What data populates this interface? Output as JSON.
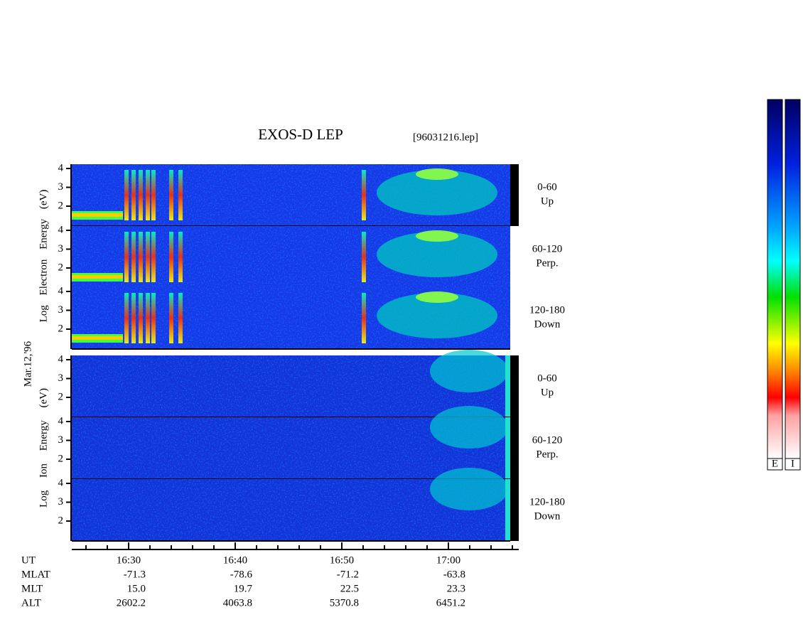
{
  "header": {
    "title": "EXOS-D LEP",
    "file": "[96031216.lep]",
    "date": "Mar.12,'96"
  },
  "groups": [
    {
      "axis_label": "Log Electron Energy (eV)",
      "panels": [
        {
          "angle": "0-60",
          "direction": "Up"
        },
        {
          "angle": "60-120",
          "direction": "Perp."
        },
        {
          "angle": "120-180",
          "direction": "Down"
        }
      ]
    },
    {
      "axis_label": "Log Ion Energy (eV)",
      "panels": [
        {
          "angle": "0-60",
          "direction": "Up"
        },
        {
          "angle": "60-120",
          "direction": "Perp."
        },
        {
          "angle": "120-180",
          "direction": "Down"
        }
      ]
    }
  ],
  "energy_ticks": [
    2,
    3,
    4
  ],
  "ephemeris": {
    "labels": [
      "UT",
      "MLAT",
      "MLT",
      "ALT"
    ],
    "rows": [
      [
        "16:30",
        "-71.3",
        "15.0",
        "2602.2"
      ],
      [
        "16:40",
        "-78.6",
        "19.7",
        "4063.8"
      ],
      [
        "16:50",
        "-71.2",
        "22.5",
        "5370.8"
      ],
      [
        "17:00",
        "-63.8",
        "23.3",
        "6451.2"
      ]
    ]
  },
  "colorbars": [
    "E",
    "I"
  ]
}
